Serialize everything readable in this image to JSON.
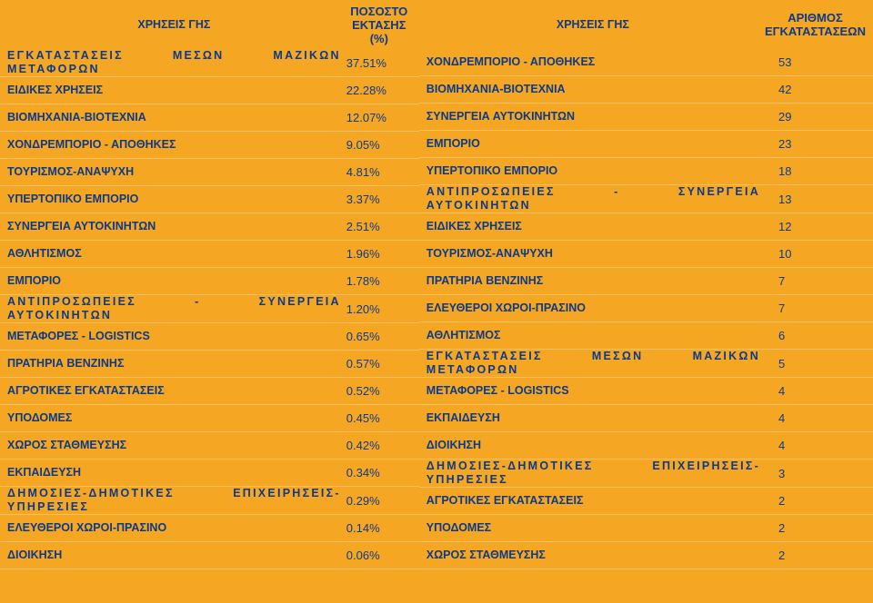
{
  "colors": {
    "background": "#f5a623",
    "text": "#0b3a8a",
    "rowDivider": "rgba(255,255,255,0.3)"
  },
  "left": {
    "header": {
      "label": "ΧΡΗΣΕΙΣ ΓΗΣ",
      "value": "ΠΟΣΟΣΤΟ ΕΚΤΑΣΗΣ (%)"
    },
    "rows": [
      {
        "label": "ΕΓΚΑΤΑΣΤΑΣΕΙΣ ΜΕΣΩΝ ΜΑΖΙΚΩΝ ΜΕΤΑΦΟΡΩΝ",
        "value": "37.51%",
        "spaced": true
      },
      {
        "label": "ΕΙΔΙΚΕΣ ΧΡΗΣΕΙΣ",
        "value": "22.28%"
      },
      {
        "label": "ΒΙΟΜΗΧΑΝΙΑ-ΒΙΟΤΕΧΝΙΑ",
        "value": "12.07%"
      },
      {
        "label": "ΧΟΝΔΡΕΜΠΟΡΙΟ - ΑΠΟΘΗΚΕΣ",
        "value": "9.05%"
      },
      {
        "label": "ΤΟΥΡΙΣΜΟΣ-ΑΝΑΨΥΧΗ",
        "value": "4.81%"
      },
      {
        "label": "ΥΠΕΡΤΟΠΙΚΟ ΕΜΠΟΡΙΟ",
        "value": "3.37%"
      },
      {
        "label": "ΣΥΝΕΡΓΕΙΑ ΑΥΤΟΚΙΝΗΤΩΝ",
        "value": "2.51%"
      },
      {
        "label": "ΑΘΛΗΤΙΣΜΟΣ",
        "value": "1.96%"
      },
      {
        "label": "ΕΜΠΟΡΙΟ",
        "value": "1.78%"
      },
      {
        "label": "ΑΝΤΙΠΡΟΣΩΠΕΙΕΣ - ΣΥΝΕΡΓΕΙΑ ΑΥΤΟΚΙΝΗΤΩΝ",
        "value": "1.20%",
        "spaced": true
      },
      {
        "label": "ΜΕΤΑΦΟΡΕΣ - LOGISTICS",
        "value": "0.65%"
      },
      {
        "label": "ΠΡΑΤΗΡΙΑ ΒΕΝΖΙΝΗΣ",
        "value": "0.57%"
      },
      {
        "label": "ΑΓΡΟΤΙΚΕΣ ΕΓΚΑΤΑΣΤΑΣΕΙΣ",
        "value": "0.52%"
      },
      {
        "label": "ΥΠΟΔΟΜΕΣ",
        "value": "0.45%"
      },
      {
        "label": "ΧΩΡΟΣ ΣΤΑΘΜΕΥΣΗΣ",
        "value": "0.42%"
      },
      {
        "label": "ΕΚΠΑΙΔΕΥΣΗ",
        "value": "0.34%"
      },
      {
        "label": "ΔΗΜΟΣΙΕΣ-ΔΗΜΟΤΙΚΕΣ ΕΠΙΧΕΙΡΗΣΕΙΣ-ΥΠΗΡΕΣΙΕΣ",
        "value": "0.29%",
        "spaced": true
      },
      {
        "label": "ΕΛΕΥΘΕΡΟΙ ΧΩΡΟΙ-ΠΡΑΣΙΝΟ",
        "value": "0.14%"
      },
      {
        "label": "ΔΙΟΙΚΗΣΗ",
        "value": "0.06%"
      }
    ]
  },
  "right": {
    "header": {
      "label": "ΧΡΗΣΕΙΣ ΓΗΣ",
      "value": "ΑΡΙΘΜΟΣ ΕΓΚΑΤΑΣΤΑΣΕΩΝ"
    },
    "rows": [
      {
        "label": "ΧΟΝΔΡΕΜΠΟΡΙΟ - ΑΠΟΘΗΚΕΣ",
        "value": "53"
      },
      {
        "label": "ΒΙΟΜΗΧΑΝΙΑ-ΒΙΟΤΕΧΝΙΑ",
        "value": "42"
      },
      {
        "label": "ΣΥΝΕΡΓΕΙΑ ΑΥΤΟΚΙΝΗΤΩΝ",
        "value": "29"
      },
      {
        "label": "ΕΜΠΟΡΙΟ",
        "value": "23"
      },
      {
        "label": "ΥΠΕΡΤΟΠΙΚΟ ΕΜΠΟΡΙΟ",
        "value": "18"
      },
      {
        "label": "ΑΝΤΙΠΡΟΣΩΠΕΙΕΣ - ΣΥΝΕΡΓΕΙΑ ΑΥΤΟΚΙΝΗΤΩΝ",
        "value": "13",
        "spaced": true
      },
      {
        "label": "ΕΙΔΙΚΕΣ ΧΡΗΣΕΙΣ",
        "value": "12"
      },
      {
        "label": "ΤΟΥΡΙΣΜΟΣ-ΑΝΑΨΥΧΗ",
        "value": "10"
      },
      {
        "label": "ΠΡΑΤΗΡΙΑ ΒΕΝΖΙΝΗΣ",
        "value": "7"
      },
      {
        "label": "ΕΛΕΥΘΕΡΟΙ ΧΩΡΟΙ-ΠΡΑΣΙΝΟ",
        "value": "7"
      },
      {
        "label": "ΑΘΛΗΤΙΣΜΟΣ",
        "value": "6"
      },
      {
        "label": "ΕΓΚΑΤΑΣΤΑΣΕΙΣ ΜΕΣΩΝ ΜΑΖΙΚΩΝ ΜΕΤΑΦΟΡΩΝ",
        "value": "5",
        "spaced": true
      },
      {
        "label": "ΜΕΤΑΦΟΡΕΣ - LOGISTICS",
        "value": "4"
      },
      {
        "label": "ΕΚΠΑΙΔΕΥΣΗ",
        "value": "4"
      },
      {
        "label": "ΔΙΟΙΚΗΣΗ",
        "value": "4"
      },
      {
        "label": "ΔΗΜΟΣΙΕΣ-ΔΗΜΟΤΙΚΕΣ ΕΠΙΧΕΙΡΗΣΕΙΣ-ΥΠΗΡΕΣΙΕΣ",
        "value": "3",
        "spaced": true
      },
      {
        "label": "ΑΓΡΟΤΙΚΕΣ ΕΓΚΑΤΑΣΤΑΣΕΙΣ",
        "value": "2"
      },
      {
        "label": "ΥΠΟΔΟΜΕΣ",
        "value": "2"
      },
      {
        "label": "ΧΩΡΟΣ ΣΤΑΘΜΕΥΣΗΣ",
        "value": "2"
      }
    ]
  }
}
